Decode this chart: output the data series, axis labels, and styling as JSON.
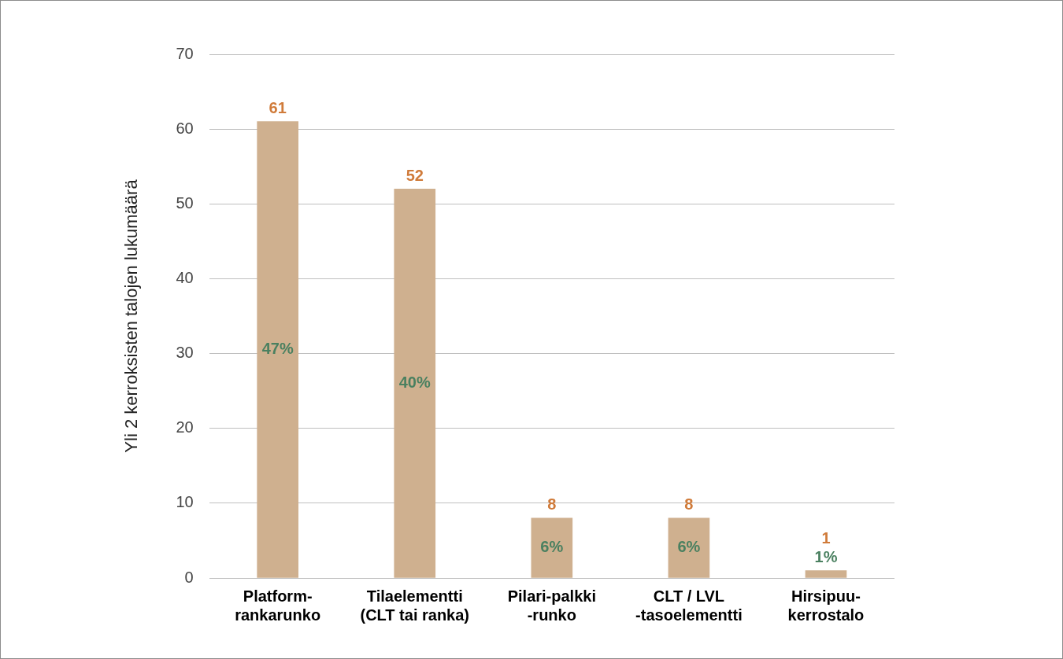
{
  "chart_data": {
    "type": "bar",
    "ylabel": "Yli 2 kerroksisten talojen lukumäärä",
    "categories": [
      "Platform-\nrankarunko",
      "Tilaelementti\n(CLT tai ranka)",
      "Pilari-palkki\n-runko",
      "CLT / LVL\n-tasoelementti",
      "Hirsipuu-\nkerrostalo"
    ],
    "values": [
      61,
      52,
      8,
      8,
      1
    ],
    "color": "#cfb08f",
    "data_labels": true,
    "annotations": [
      "47%",
      "40%",
      "6%",
      "6%",
      "1%"
    ],
    "ylim": [
      0,
      70
    ],
    "yticks": [
      0,
      10,
      20,
      30,
      40,
      50,
      60,
      70
    ],
    "grid": "y",
    "legend": false
  }
}
